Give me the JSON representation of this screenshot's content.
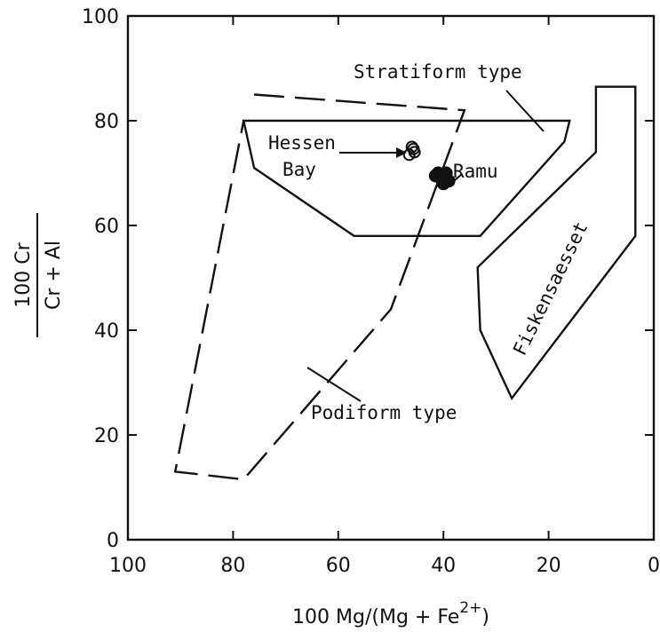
{
  "chart_data": {
    "type": "scatter",
    "title": "",
    "xlabel": "100 Mg/(Mg + Fe",
    "xlabel_sup": "2+",
    "xlabel_close": ")",
    "ylabel_num": "100 Cr",
    "ylabel_den": "Cr + Al",
    "xlim": [
      100,
      0
    ],
    "ylim": [
      0,
      100
    ],
    "x_reversed": true,
    "grid": false,
    "xticks": [
      100,
      80,
      60,
      40,
      20,
      0
    ],
    "yticks": [
      0,
      20,
      40,
      60,
      80,
      100
    ],
    "fields": [
      {
        "name": "Stratiform type",
        "style": "solid",
        "polygon": [
          [
            78,
            80
          ],
          [
            16,
            80
          ],
          [
            17,
            76
          ],
          [
            33,
            58
          ],
          [
            57,
            58
          ],
          [
            76,
            71
          ]
        ]
      },
      {
        "name": "Podiform type",
        "style": "dashed",
        "polygon": [
          [
            76,
            85
          ],
          [
            36,
            82
          ],
          [
            50,
            44
          ],
          [
            78,
            11.5
          ],
          [
            91,
            13
          ],
          [
            78,
            80
          ]
        ]
      },
      {
        "name": "Fiskensaesset",
        "style": "solid",
        "polygon": [
          [
            11,
            86.5
          ],
          [
            3.5,
            86.5
          ],
          [
            3.5,
            58
          ],
          [
            27,
            27
          ],
          [
            33,
            40
          ],
          [
            33.5,
            52
          ],
          [
            11,
            74
          ]
        ]
      }
    ],
    "series": [
      {
        "name": "Hessen Bay",
        "marker": "open-circle",
        "x": [
          46,
          45.5,
          46.5,
          45.7
        ],
        "y": [
          75,
          74,
          73.5,
          74.6
        ]
      },
      {
        "name": "Ramu",
        "marker": "filled-circle",
        "x": [
          41,
          39.5,
          40.5,
          39,
          40,
          41.5,
          40.2
        ],
        "y": [
          70,
          70,
          69,
          68.5,
          68,
          69.5,
          69.6
        ]
      }
    ],
    "labels": {
      "stratiform": "Stratiform type",
      "podiform": "Podiform type",
      "fiskensaesset": "Fiskensaesset",
      "hessen_line1": "Hessen",
      "hessen_line2": "Bay",
      "ramu": "Ramu"
    }
  }
}
